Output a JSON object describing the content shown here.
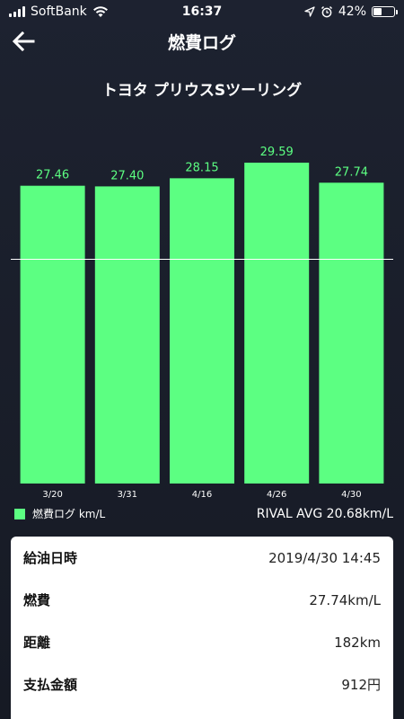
{
  "status_bar": {
    "carrier": "SoftBank",
    "time": "16:37",
    "battery": "42%",
    "battery_level": 0.42
  },
  "header": {
    "title": "燃費ログ"
  },
  "car_name": "トヨタ プリウスSツーリング",
  "chart_data": {
    "type": "bar",
    "categories": [
      "3/20",
      "3/31",
      "4/16",
      "4/26",
      "4/30"
    ],
    "values": [
      27.46,
      27.4,
      28.15,
      29.59,
      27.74
    ],
    "value_labels": [
      "27.46",
      "27.40",
      "28.15",
      "29.59",
      "27.74"
    ],
    "ylim": [
      0,
      30.5
    ],
    "reference_line": 20.68,
    "bar_color": "#5cff82",
    "label_color": "#5cff82",
    "legend_label": "燃費ログ km/L",
    "rival_avg_label": "RIVAL AVG 20.68km/L"
  },
  "details": [
    {
      "label": "給油日時",
      "value": "2019/4/30 14:45"
    },
    {
      "label": "燃費",
      "value": "27.74km/L"
    },
    {
      "label": "距離",
      "value": "182km"
    },
    {
      "label": "支払金額",
      "value": "912円"
    }
  ]
}
